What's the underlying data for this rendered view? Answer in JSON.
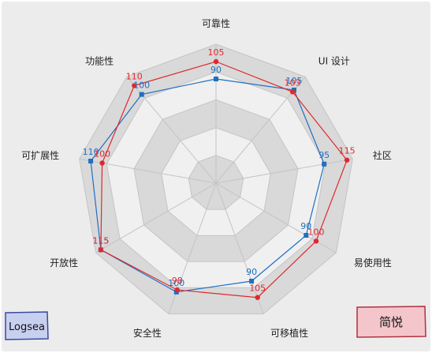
{
  "chart_data": {
    "type": "radar",
    "title": "",
    "axes": [
      "可靠性",
      "UI 设计",
      "社区",
      "易使用性",
      "可移植性",
      "安全性",
      "开放性",
      "可扩展性",
      "功能性"
    ],
    "rmax": 120,
    "rings": 5,
    "grid": true,
    "series": [
      {
        "name": "Logsea",
        "color": "#1f6fbf",
        "marker": "square",
        "values": [
          90,
          105,
          95,
          90,
          90,
          100,
          115,
          110,
          100
        ]
      },
      {
        "name": "简悦",
        "color": "#e0282e",
        "marker": "circle",
        "values": [
          105,
          103,
          115,
          100,
          105,
          98,
          115,
          100,
          110
        ]
      }
    ],
    "legend": [
      {
        "label": "Logsea",
        "placement": "bottom-left",
        "fill": "#c8d0f0",
        "stroke": "#3a4aa0"
      },
      {
        "label": "简悦",
        "placement": "bottom-right",
        "fill": "#f4c6cb",
        "stroke": "#b03040"
      }
    ],
    "colors": {
      "background": "#ececec",
      "ring_dark": "#d9d9d9",
      "ring_light": "#f0f0f0",
      "grid_line": "#c4c4c4"
    }
  }
}
